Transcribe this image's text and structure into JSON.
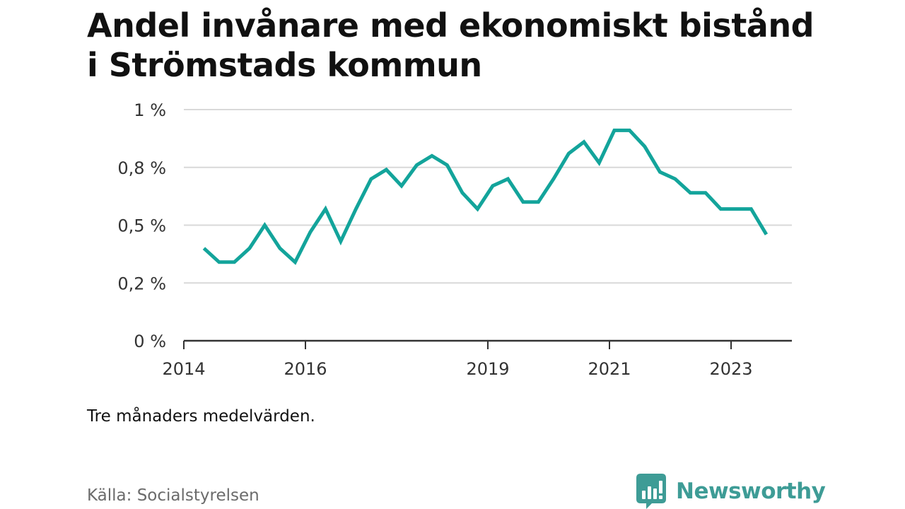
{
  "title": "Andel invånare med ekonomiskt bistånd i Strömstads kommun",
  "note": "Tre månaders medelvärden.",
  "source": "Källa: Socialstyrelsen",
  "brand": {
    "name": "Newsworthy",
    "icon": "bar-chart-icon",
    "color": "#3e9c96"
  },
  "chart_data": {
    "type": "line",
    "title": "Andel invånare med ekonomiskt bistånd i Strömstads kommun",
    "xlabel": "",
    "ylabel": "",
    "xlim": [
      2014.0,
      2024.0
    ],
    "ylim": [
      0,
      1
    ],
    "grid": true,
    "legend": "none",
    "x_ticks": [
      {
        "value": 2014,
        "label": "2014"
      },
      {
        "value": 2016,
        "label": "2016"
      },
      {
        "value": 2019,
        "label": "2019"
      },
      {
        "value": 2021,
        "label": "2021"
      },
      {
        "value": 2023,
        "label": "2023"
      }
    ],
    "y_ticks": [
      {
        "value": 0,
        "label": "0 %"
      },
      {
        "value": 0.25,
        "label": "0,2 %"
      },
      {
        "value": 0.5,
        "label": "0,5 %"
      },
      {
        "value": 0.75,
        "label": "0,8 %"
      },
      {
        "value": 1.0,
        "label": "1 %"
      }
    ],
    "series": [
      {
        "color": "#13a49b",
        "x": [
          2014.33,
          2014.58,
          2014.83,
          2015.08,
          2015.33,
          2015.58,
          2015.83,
          2016.08,
          2016.33,
          2016.58,
          2016.83,
          2017.08,
          2017.33,
          2017.58,
          2017.83,
          2018.08,
          2018.33,
          2018.58,
          2018.83,
          2019.08,
          2019.33,
          2019.58,
          2019.83,
          2020.08,
          2020.33,
          2020.58,
          2020.83,
          2021.08,
          2021.33,
          2021.58,
          2021.83,
          2022.08,
          2022.33,
          2022.58,
          2022.83,
          2023.08,
          2023.33,
          2023.58
        ],
        "y": [
          0.4,
          0.34,
          0.34,
          0.4,
          0.5,
          0.4,
          0.34,
          0.47,
          0.57,
          0.43,
          0.57,
          0.7,
          0.74,
          0.67,
          0.76,
          0.8,
          0.76,
          0.64,
          0.57,
          0.67,
          0.7,
          0.6,
          0.6,
          0.7,
          0.81,
          0.86,
          0.77,
          0.91,
          0.91,
          0.84,
          0.73,
          0.7,
          0.64,
          0.64,
          0.57,
          0.57,
          0.57,
          0.46
        ]
      }
    ]
  }
}
